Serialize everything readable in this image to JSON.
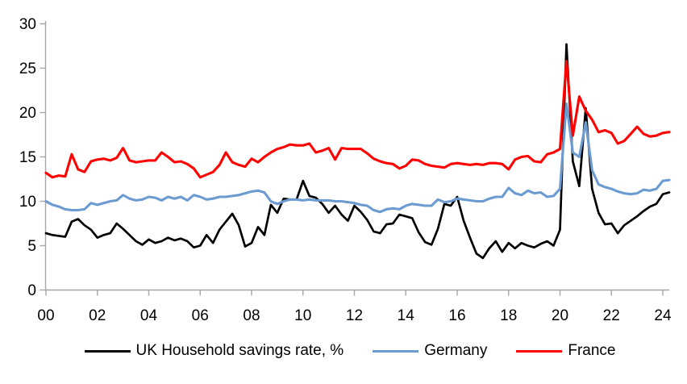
{
  "chart_data": {
    "type": "line",
    "title": "",
    "xlabel": "",
    "ylabel": "",
    "x_unit": "quarterly",
    "x_start_year": 2000,
    "points_per_year": 4,
    "grid": false,
    "legend_position": "bottom",
    "axis_color": "#A6A6A6",
    "x_axis": {
      "tick_labels": [
        "00",
        "02",
        "04",
        "06",
        "08",
        "10",
        "12",
        "14",
        "16",
        "18",
        "20",
        "22",
        "24"
      ],
      "years_per_tick": 2
    },
    "y_axis": {
      "tick_labels": [
        "0",
        "5",
        "10",
        "15",
        "20",
        "25",
        "30"
      ],
      "range": [
        0,
        30
      ],
      "step": 5
    },
    "series": [
      {
        "name": "UK Household savings rate, %",
        "color": "#000000",
        "start": "2000Q1",
        "step_years": 0.25,
        "values": [
          6.4,
          6.2,
          6.1,
          6.0,
          7.7,
          8.0,
          7.3,
          6.8,
          5.9,
          6.2,
          6.4,
          7.5,
          6.9,
          6.2,
          5.5,
          5.1,
          5.7,
          5.3,
          5.5,
          5.9,
          5.6,
          5.8,
          5.5,
          4.8,
          5.0,
          6.2,
          5.3,
          6.8,
          7.7,
          8.6,
          7.3,
          4.9,
          5.3,
          7.1,
          6.2,
          9.6,
          8.7,
          10.3,
          10.2,
          10.2,
          12.3,
          10.6,
          10.4,
          9.7,
          8.7,
          9.5,
          8.5,
          7.8,
          9.5,
          8.8,
          7.9,
          6.6,
          6.4,
          7.4,
          7.5,
          8.5,
          8.3,
          8.1,
          6.5,
          5.4,
          5.1,
          6.9,
          9.7,
          9.5,
          10.5,
          7.8,
          5.9,
          4.1,
          3.6,
          4.7,
          5.5,
          4.3,
          5.3,
          4.7,
          5.3,
          5.0,
          4.8,
          5.2,
          5.5,
          5.0,
          6.8,
          27.7,
          14.5,
          11.7,
          20.5,
          11.4,
          8.7,
          7.4,
          7.5,
          6.4,
          7.3,
          7.8,
          8.3,
          8.9,
          9.4,
          9.7,
          10.8,
          11.0
        ]
      },
      {
        "name": "Germany",
        "color": "#6B9BD0",
        "start": "2000Q1",
        "step_years": 0.25,
        "values": [
          10.0,
          9.6,
          9.4,
          9.1,
          9.0,
          9.0,
          9.1,
          9.8,
          9.6,
          9.8,
          10.0,
          10.1,
          10.7,
          10.3,
          10.1,
          10.2,
          10.5,
          10.4,
          10.1,
          10.5,
          10.3,
          10.5,
          10.1,
          10.7,
          10.5,
          10.2,
          10.3,
          10.5,
          10.5,
          10.6,
          10.7,
          10.9,
          11.1,
          11.2,
          11.0,
          10.0,
          9.7,
          10.0,
          10.2,
          10.2,
          10.1,
          10.2,
          10.1,
          10.1,
          10.1,
          10.0,
          10.0,
          9.9,
          9.8,
          9.6,
          9.5,
          9.0,
          8.8,
          9.1,
          9.2,
          9.1,
          9.5,
          9.7,
          9.6,
          9.5,
          9.5,
          10.2,
          9.9,
          10.0,
          10.3,
          10.2,
          10.1,
          10.0,
          10.0,
          10.3,
          10.5,
          10.5,
          11.5,
          10.9,
          10.7,
          11.2,
          10.9,
          11.0,
          10.5,
          10.6,
          11.4,
          21.0,
          15.5,
          15.0,
          18.9,
          13.5,
          11.9,
          11.6,
          11.4,
          11.1,
          10.9,
          10.8,
          10.9,
          11.3,
          11.2,
          11.4,
          12.3,
          12.4
        ]
      },
      {
        "name": "France",
        "color": "#FF0000",
        "start": "2000Q1",
        "step_years": 0.25,
        "values": [
          13.2,
          12.7,
          12.9,
          12.8,
          15.3,
          13.6,
          13.3,
          14.5,
          14.7,
          14.8,
          14.6,
          14.9,
          16.0,
          14.6,
          14.4,
          14.5,
          14.6,
          14.6,
          15.5,
          15.0,
          14.4,
          14.5,
          14.2,
          13.7,
          12.7,
          13.0,
          13.3,
          14.1,
          15.5,
          14.4,
          14.1,
          13.9,
          14.8,
          14.4,
          15.0,
          15.5,
          15.9,
          16.1,
          16.4,
          16.3,
          16.3,
          16.5,
          15.5,
          15.7,
          16.0,
          14.7,
          16.0,
          15.9,
          15.9,
          15.9,
          15.4,
          14.8,
          14.5,
          14.3,
          14.2,
          13.7,
          14.0,
          14.7,
          14.6,
          14.2,
          14.0,
          13.9,
          13.8,
          14.2,
          14.3,
          14.2,
          14.1,
          14.2,
          14.1,
          14.3,
          14.3,
          14.2,
          13.6,
          14.7,
          15.0,
          15.1,
          14.5,
          14.4,
          15.3,
          15.5,
          15.9,
          25.8,
          17.4,
          21.8,
          20.2,
          19.2,
          17.8,
          18.0,
          17.7,
          16.5,
          16.8,
          17.6,
          18.4,
          17.6,
          17.3,
          17.4,
          17.7,
          17.8
        ]
      }
    ]
  },
  "legend": {
    "uk_label": "UK Household savings rate, %",
    "germany_label": "Germany",
    "france_label": "France"
  }
}
